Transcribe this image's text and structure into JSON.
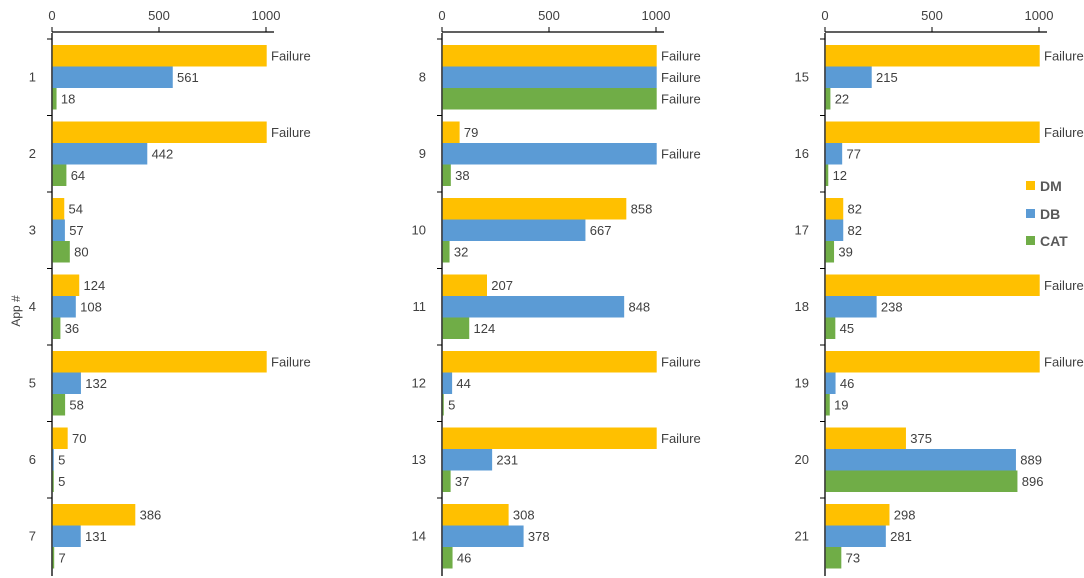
{
  "chart_data": {
    "type": "bar",
    "orientation": "horizontal",
    "ylabel": "App #",
    "xlim": [
      0,
      1000
    ],
    "xticks": [
      "0",
      "500",
      "1000"
    ],
    "failure_label": "Failure",
    "legend_position": "right",
    "colors": {
      "DM": "#FFC000",
      "DB": "#5B9BD5",
      "CAT": "#70AD47"
    },
    "series_names": [
      "DM",
      "DB",
      "CAT"
    ],
    "panels": [
      {
        "categories": [
          "1",
          "2",
          "3",
          "4",
          "5",
          "6",
          "7"
        ],
        "series": [
          {
            "name": "DM",
            "values": [
              "Failure",
              "Failure",
              54,
              124,
              "Failure",
              70,
              386
            ]
          },
          {
            "name": "DB",
            "values": [
              561,
              442,
              57,
              108,
              132,
              5,
              131
            ]
          },
          {
            "name": "CAT",
            "values": [
              18,
              64,
              80,
              36,
              58,
              5,
              7
            ]
          }
        ]
      },
      {
        "categories": [
          "8",
          "9",
          "10",
          "11",
          "12",
          "13",
          "14"
        ],
        "series": [
          {
            "name": "DM",
            "values": [
              "Failure",
              79,
              858,
              207,
              "Failure",
              "Failure",
              308
            ]
          },
          {
            "name": "DB",
            "values": [
              "Failure",
              "Failure",
              667,
              848,
              44,
              231,
              378
            ]
          },
          {
            "name": "CAT",
            "values": [
              "Failure",
              38,
              32,
              124,
              5,
              37,
              46
            ]
          }
        ]
      },
      {
        "categories": [
          "15",
          "16",
          "17",
          "18",
          "19",
          "20",
          "21"
        ],
        "series": [
          {
            "name": "DM",
            "values": [
              "Failure",
              "Failure",
              82,
              "Failure",
              "Failure",
              375,
              298
            ]
          },
          {
            "name": "DB",
            "values": [
              215,
              77,
              82,
              238,
              46,
              889,
              281
            ]
          },
          {
            "name": "CAT",
            "values": [
              22,
              12,
              39,
              45,
              19,
              896,
              73
            ]
          }
        ]
      }
    ]
  }
}
